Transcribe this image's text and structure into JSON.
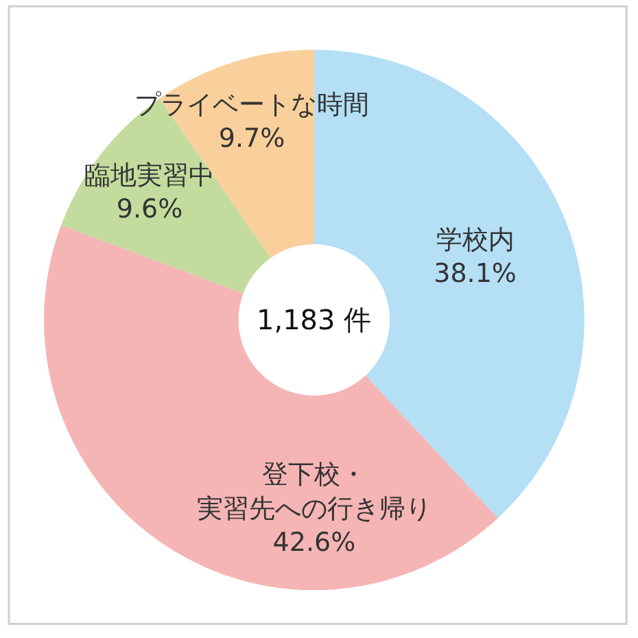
{
  "chart_data": {
    "type": "donut",
    "categories": [
      "学校内",
      "登下校・実習先への行き帰り",
      "臨地実習中",
      "プライベートな時間"
    ],
    "values": [
      38.1,
      42.6,
      9.6,
      9.7
    ],
    "value_labels": [
      "38.1%",
      "42.6%",
      "9.6%",
      "9.7%"
    ],
    "colors": [
      "#b4dff5",
      "#f5b5b4",
      "#c3dc9e",
      "#f9cf9b"
    ],
    "annotations": [
      "1,183 件"
    ]
  }
}
